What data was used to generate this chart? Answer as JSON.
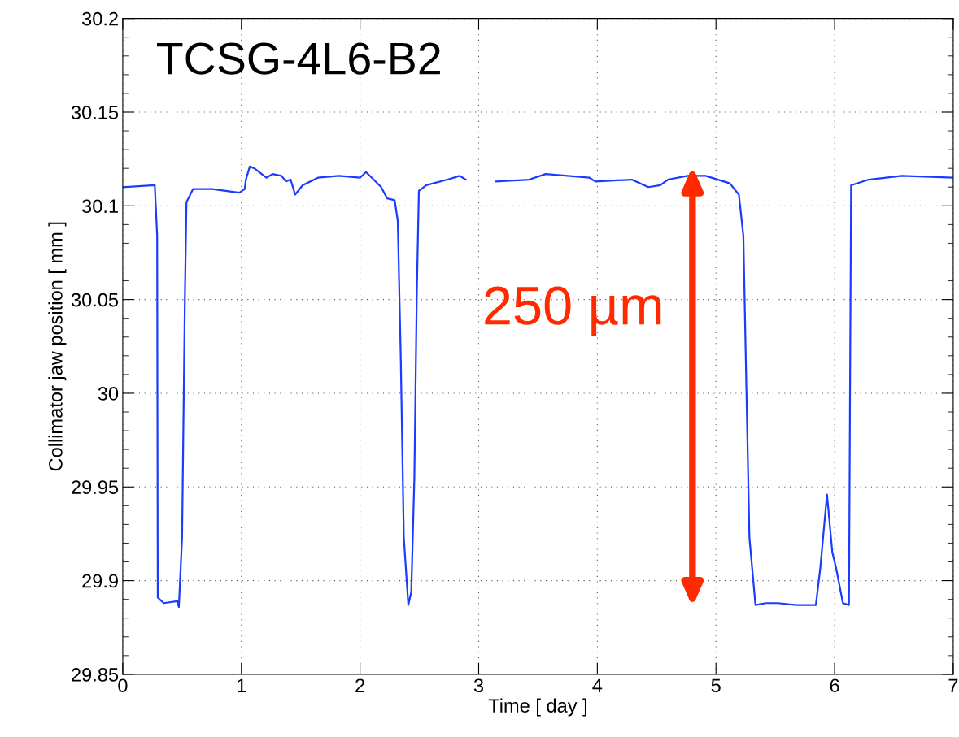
{
  "chart_data": {
    "type": "line",
    "title": "TCSG-4L6-B2",
    "xlabel": "Time [ day ]",
    "ylabel": "Collimator jaw position [ mm ]",
    "x": [
      0,
      0.27,
      0.29,
      0.295,
      0.346,
      0.46,
      0.473,
      0.5,
      0.524,
      0.537,
      0.593,
      0.753,
      0.982,
      1.028,
      1.038,
      1.071,
      1.109,
      1.211,
      1.262,
      1.338,
      1.376,
      1.415,
      1.453,
      1.516,
      1.644,
      1.822,
      2.0,
      2.05,
      2.1,
      2.178,
      2.228,
      2.292,
      2.318,
      2.343,
      2.369,
      2.407,
      2.432,
      2.458,
      2.478,
      2.496,
      2.559,
      2.737,
      2.84,
      2.89,
      3.0,
      3.145,
      3.425,
      3.565,
      3.934,
      3.984,
      4.29,
      4.43,
      4.531,
      4.595,
      4.76,
      4.913,
      5.117,
      5.193,
      5.231,
      5.256,
      5.282,
      5.333,
      5.422,
      5.523,
      5.676,
      5.842,
      5.88,
      5.936,
      5.981,
      6.012,
      6.07,
      6.121,
      6.139,
      6.287,
      6.566,
      7.0
    ],
    "series": [
      {
        "color": "#1a3cff",
        "values": [
          30.11,
          30.111,
          30.084,
          29.891,
          29.888,
          29.889,
          29.886,
          29.923,
          30.052,
          30.102,
          30.109,
          30.109,
          30.107,
          30.109,
          30.114,
          30.121,
          30.12,
          30.115,
          30.117,
          30.116,
          30.113,
          30.114,
          30.106,
          30.111,
          30.115,
          30.116,
          30.115,
          30.118,
          30.115,
          30.11,
          30.104,
          30.103,
          30.092,
          30.02,
          29.923,
          29.887,
          29.894,
          29.955,
          30.052,
          30.108,
          30.111,
          30.114,
          30.116,
          30.114,
          null,
          30.113,
          30.114,
          30.117,
          30.115,
          30.113,
          30.114,
          30.11,
          30.111,
          30.114,
          30.116,
          30.116,
          30.112,
          30.106,
          30.084,
          30.004,
          29.923,
          29.887,
          29.888,
          29.888,
          29.887,
          29.887,
          29.907,
          29.946,
          29.915,
          29.907,
          29.888,
          29.887,
          30.111,
          30.114,
          30.116,
          30.115
        ]
      }
    ],
    "annotations": [
      "250 µm"
    ],
    "xlim": [
      0,
      7
    ],
    "xticks": [
      0,
      1,
      2,
      3,
      4,
      5,
      6,
      7
    ],
    "ylim": [
      29.85,
      30.2
    ],
    "yticks": [
      29.85,
      29.9,
      29.95,
      30,
      30.05,
      30.1,
      30.15,
      30.2
    ],
    "grid": true,
    "line_style": "solid",
    "marker": "none"
  }
}
